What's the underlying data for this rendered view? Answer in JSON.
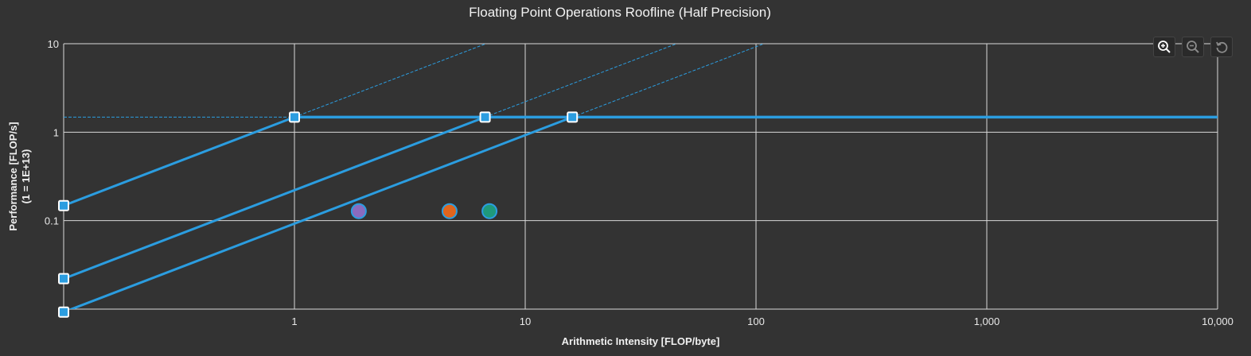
{
  "chart_data": {
    "type": "line",
    "title": "Floating Point Operations Roofline (Half Precision)",
    "xlabel": "Arithmetic Intensity [FLOP/byte]",
    "ylabel": "Performance [FLOP/s]",
    "ylabel_sub": "(1 = 1E+13)",
    "x_scale": "log",
    "y_scale": "log",
    "xlim": [
      0.1,
      10000
    ],
    "ylim": [
      0.01,
      10
    ],
    "x_ticks": [
      {
        "v": 1,
        "label": "1"
      },
      {
        "v": 10,
        "label": "10"
      },
      {
        "v": 100,
        "label": "100"
      },
      {
        "v": 1000,
        "label": "1,000"
      },
      {
        "v": 10000,
        "label": "10,000"
      }
    ],
    "y_ticks": [
      {
        "v": 0.1,
        "label": "0.1"
      },
      {
        "v": 1,
        "label": "1"
      },
      {
        "v": 10,
        "label": "10"
      }
    ],
    "grid": true,
    "peak_compute": 1.48,
    "rooflines": [
      {
        "bandwidth": 1.48,
        "ridge_x": 1.0
      },
      {
        "bandwidth": 0.22,
        "ridge_x": 6.7
      },
      {
        "bandwidth": 0.093,
        "ridge_x": 16.0
      }
    ],
    "points": [
      {
        "x": 1.9,
        "y": 0.128,
        "color": "#8a6bbf"
      },
      {
        "x": 4.7,
        "y": 0.128,
        "color": "#e0651d"
      },
      {
        "x": 7.0,
        "y": 0.128,
        "color": "#1f9a7c"
      }
    ],
    "line_color": "#2b9de0"
  },
  "toolbar": {
    "zoom_in": "zoom-in-icon",
    "zoom_out": "zoom-out-icon",
    "reset": "reset-icon"
  }
}
